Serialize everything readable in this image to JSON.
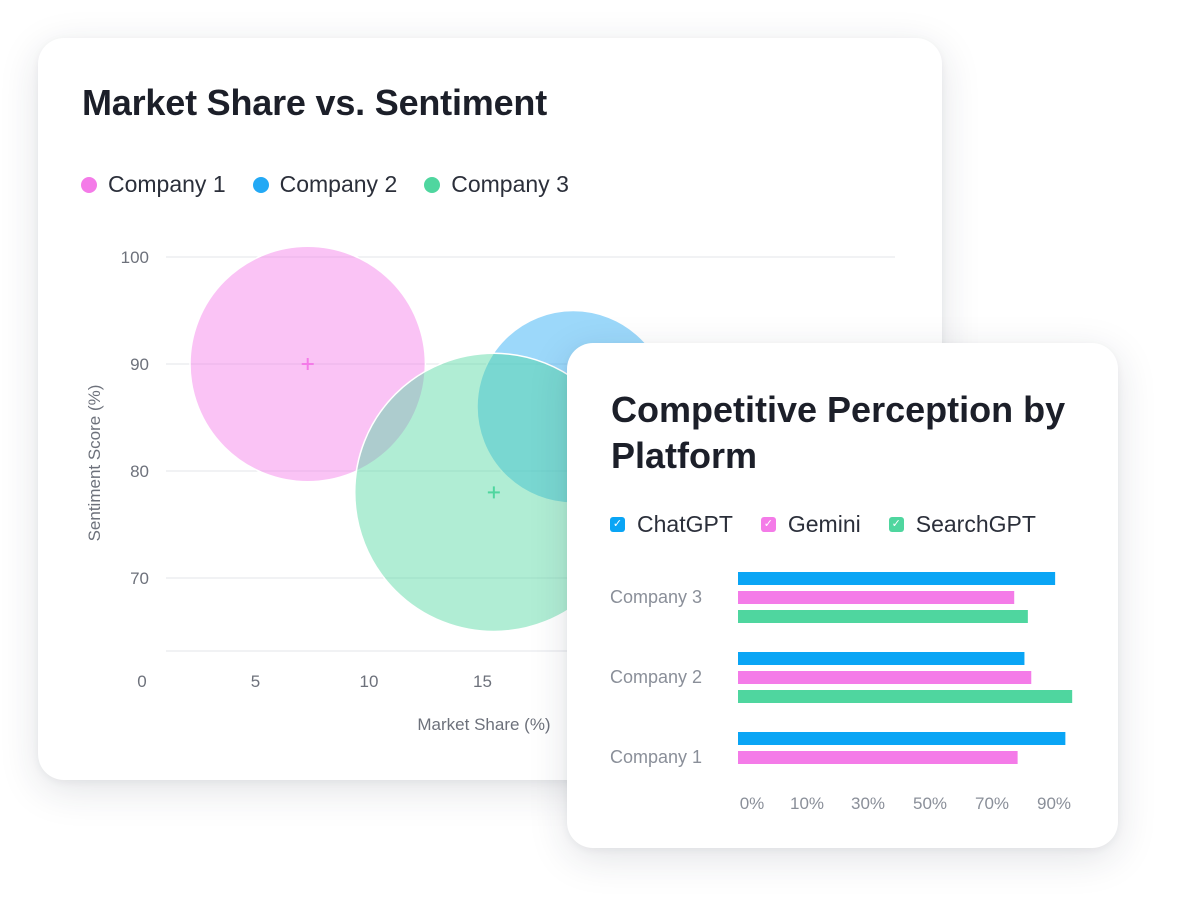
{
  "bubble_card": {
    "title": "Market Share vs. Sentiment",
    "legend": [
      {
        "label": "Company 1",
        "color": "#f47be8"
      },
      {
        "label": "Company 2",
        "color": "#23a9f5"
      },
      {
        "label": "Company 3",
        "color": "#4fd69f"
      }
    ]
  },
  "bar_card": {
    "title": "Competitive Perception by Platform",
    "legend": [
      {
        "label": "ChatGPT",
        "color": "#0aa5f5",
        "icon": "check-icon"
      },
      {
        "label": "Gemini",
        "color": "#f47be8",
        "icon": "check-icon"
      },
      {
        "label": "SearchGPT",
        "color": "#4fd69f",
        "icon": "check-icon"
      }
    ]
  },
  "chart_data": [
    {
      "type": "scatter",
      "subtype": "bubble",
      "title": "Market Share vs. Sentiment",
      "xlabel": "Market Share (%)",
      "ylabel": "Sentiment Score (%)",
      "x_ticks": [
        "0",
        "5",
        "10",
        "15"
      ],
      "y_ticks": [
        "100",
        "90",
        "80",
        "70"
      ],
      "grid": true,
      "legend_position": "top-left",
      "series": [
        {
          "name": "Company 1",
          "color": "#f47be8",
          "points": [
            {
              "x": 7.3,
              "y": 90,
              "size": 11
            }
          ]
        },
        {
          "name": "Company 2",
          "color": "#23a9f5",
          "points": [
            {
              "x": 19,
              "y": 86,
              "size": 9
            }
          ]
        },
        {
          "name": "Company 3",
          "color": "#4fd69f",
          "points": [
            {
              "x": 15.5,
              "y": 78,
              "size": 13
            }
          ]
        }
      ]
    },
    {
      "type": "bar",
      "orientation": "horizontal",
      "title": "Competitive Perception by Platform",
      "categories": [
        "Company 3",
        "Company 2",
        "Company 1"
      ],
      "x_ticks": [
        "0%",
        "10%",
        "30%",
        "50%",
        "70%",
        "90%"
      ],
      "legend_position": "top",
      "series": [
        {
          "name": "ChatGPT",
          "color": "#0aa5f5",
          "values": [
            93,
            84,
            96
          ]
        },
        {
          "name": "Gemini",
          "color": "#f47be8",
          "values": [
            81,
            86,
            82
          ]
        },
        {
          "name": "SearchGPT",
          "color": "#4fd69f",
          "values": [
            85,
            98,
            null
          ]
        }
      ]
    }
  ]
}
